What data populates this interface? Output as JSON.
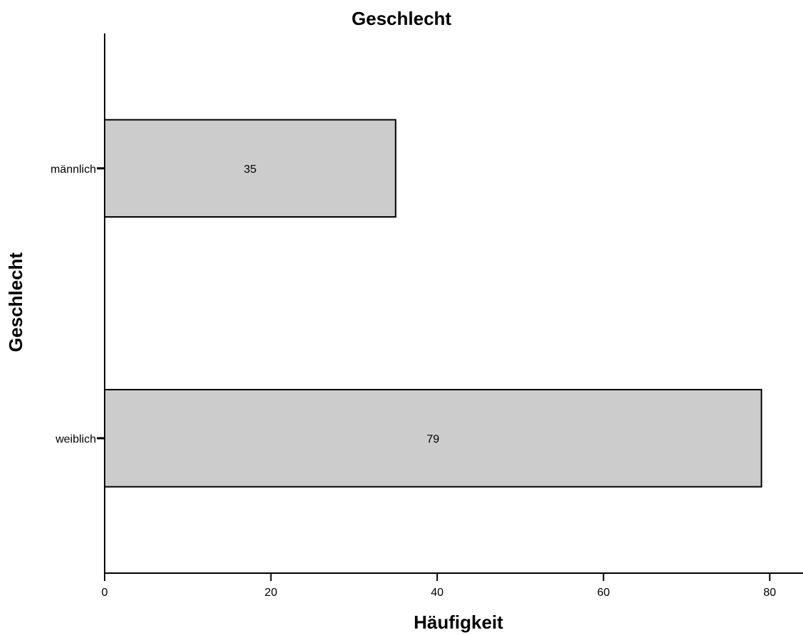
{
  "chart_data": {
    "type": "bar",
    "orientation": "horizontal",
    "title": "Geschlecht",
    "xlabel": "Häufigkeit",
    "ylabel": "Geschlecht",
    "categories": [
      "männlich",
      "weiblich"
    ],
    "values": [
      35,
      79
    ],
    "data_labels": [
      "35",
      "79"
    ],
    "xlim": [
      0,
      84
    ],
    "x_ticks": [
      0,
      20,
      40,
      60,
      80
    ],
    "x_tick_labels": [
      "0",
      "20",
      "40",
      "60",
      "80"
    ],
    "grid": false,
    "legend": "none",
    "bar_color": "#cccccc",
    "bar_edge_color": "#000000"
  }
}
